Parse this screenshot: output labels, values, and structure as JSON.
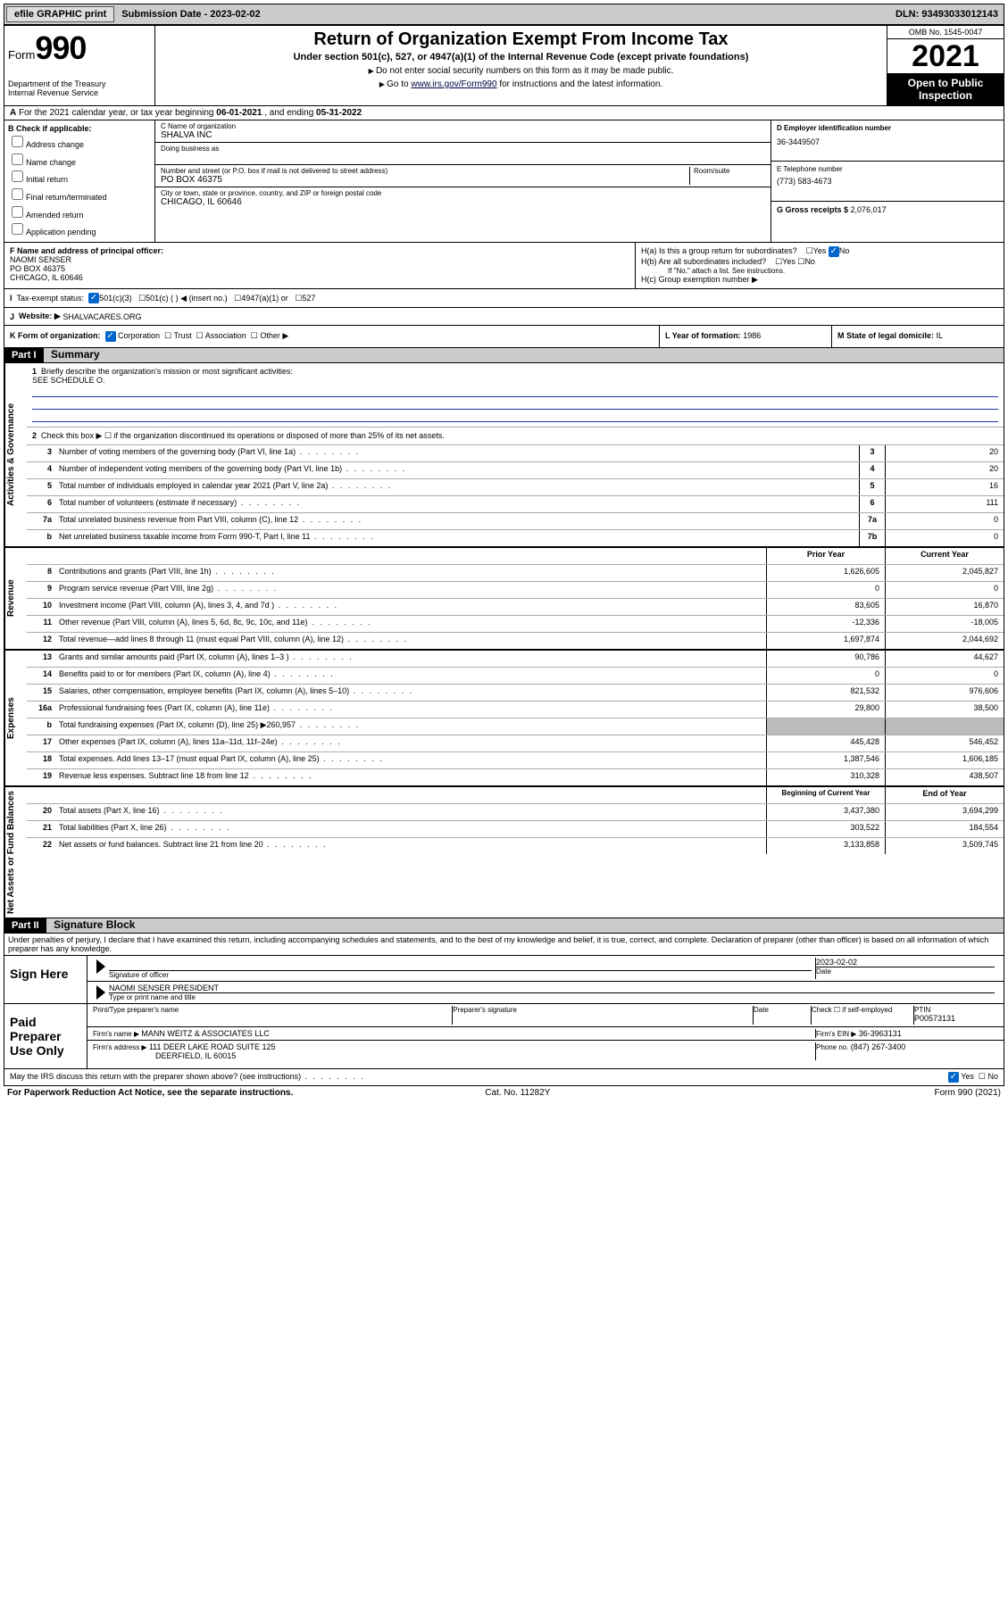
{
  "topbar": {
    "efile": "efile GRAPHIC print",
    "submission_label": "Submission Date - ",
    "submission_date": "2023-02-02",
    "dln_label": "DLN: ",
    "dln": "93493033012143"
  },
  "header": {
    "form_prefix": "Form",
    "form_num": "990",
    "dept": "Department of the Treasury\nInternal Revenue Service",
    "title": "Return of Organization Exempt From Income Tax",
    "sub1": "Under section 501(c), 527, or 4947(a)(1) of the Internal Revenue Code (except private foundations)",
    "sub2a": "Do not enter social security numbers on this form as it may be made public.",
    "sub2b_pre": "Go to ",
    "sub2b_link": "www.irs.gov/Form990",
    "sub2b_post": " for instructions and the latest information.",
    "omb": "OMB No. 1545-0047",
    "year": "2021",
    "open": "Open to Public Inspection"
  },
  "rowA": {
    "text_pre": "For the 2021 calendar year, or tax year beginning ",
    "begin": "06-01-2021",
    "mid": " , and ending ",
    "end": "05-31-2022"
  },
  "colB": {
    "label": "B Check if applicable:",
    "opts": [
      "Address change",
      "Name change",
      "Initial return",
      "Final return/terminated",
      "Amended return",
      "Application pending"
    ]
  },
  "colC": {
    "name_label": "C Name of organization",
    "name": "SHALVA INC",
    "dba_label": "Doing business as",
    "addr_label": "Number and street (or P.O. box if mail is not delivered to street address)",
    "room_label": "Room/suite",
    "addr": "PO BOX 46375",
    "city_label": "City or town, state or province, country, and ZIP or foreign postal code",
    "city": "CHICAGO, IL  60646"
  },
  "colD": {
    "ein_label": "D Employer identification number",
    "ein": "36-3449507",
    "phone_label": "E Telephone number",
    "phone": "(773) 583-4673",
    "gross_label": "G Gross receipts $ ",
    "gross": "2,076,017"
  },
  "rowF": {
    "label": "F Name and address of principal officer:",
    "name": "NAOMI SENSER",
    "addr1": "PO BOX 46375",
    "addr2": "CHICAGO, IL  60646"
  },
  "rowH": {
    "ha": "H(a)  Is this a group return for subordinates?",
    "hb": "H(b)  Are all subordinates included?",
    "hb_note": "If \"No,\" attach a list. See instructions.",
    "hc": "H(c)  Group exemption number ▶",
    "yes": "Yes",
    "no": "No"
  },
  "rowI": {
    "label": "Tax-exempt status:",
    "opts": [
      "501(c)(3)",
      "501(c) (  ) ◀ (insert no.)",
      "4947(a)(1) or",
      "527"
    ]
  },
  "rowJ": {
    "label": "Website: ▶ ",
    "val": "SHALVACARES.ORG"
  },
  "rowK": {
    "label": "K Form of organization:",
    "opts": [
      "Corporation",
      "Trust",
      "Association",
      "Other ▶"
    ]
  },
  "rowL": {
    "label": "L Year of formation: ",
    "val": "1986"
  },
  "rowM": {
    "label": "M State of legal domicile: ",
    "val": "IL"
  },
  "partI": {
    "hdr": "Part I",
    "title": "Summary",
    "q1_label": "Briefly describe the organization's mission or most significant activities:",
    "q1_val": "SEE SCHEDULE O.",
    "q2": "Check this box ▶ ☐  if the organization discontinued its operations or disposed of more than 25% of its net assets.",
    "lines_gov": [
      {
        "n": "3",
        "d": "Number of voting members of the governing body (Part VI, line 1a)",
        "box": "3",
        "v": "20"
      },
      {
        "n": "4",
        "d": "Number of independent voting members of the governing body (Part VI, line 1b)",
        "box": "4",
        "v": "20"
      },
      {
        "n": "5",
        "d": "Total number of individuals employed in calendar year 2021 (Part V, line 2a)",
        "box": "5",
        "v": "16"
      },
      {
        "n": "6",
        "d": "Total number of volunteers (estimate if necessary)",
        "box": "6",
        "v": "111"
      },
      {
        "n": "7a",
        "d": "Total unrelated business revenue from Part VIII, column (C), line 12",
        "box": "7a",
        "v": "0"
      },
      {
        "n": "b",
        "d": "Net unrelated business taxable income from Form 990-T, Part I, line 11",
        "box": "7b",
        "v": "0"
      }
    ],
    "col_prior": "Prior Year",
    "col_current": "Current Year",
    "lines_rev": [
      {
        "n": "8",
        "d": "Contributions and grants (Part VIII, line 1h)",
        "p": "1,626,605",
        "c": "2,045,827"
      },
      {
        "n": "9",
        "d": "Program service revenue (Part VIII, line 2g)",
        "p": "0",
        "c": "0"
      },
      {
        "n": "10",
        "d": "Investment income (Part VIII, column (A), lines 3, 4, and 7d )",
        "p": "83,605",
        "c": "16,870"
      },
      {
        "n": "11",
        "d": "Other revenue (Part VIII, column (A), lines 5, 6d, 8c, 9c, 10c, and 11e)",
        "p": "-12,336",
        "c": "-18,005"
      },
      {
        "n": "12",
        "d": "Total revenue—add lines 8 through 11 (must equal Part VIII, column (A), line 12)",
        "p": "1,697,874",
        "c": "2,044,692"
      }
    ],
    "lines_exp": [
      {
        "n": "13",
        "d": "Grants and similar amounts paid (Part IX, column (A), lines 1–3 )",
        "p": "90,786",
        "c": "44,627"
      },
      {
        "n": "14",
        "d": "Benefits paid to or for members (Part IX, column (A), line 4)",
        "p": "0",
        "c": "0"
      },
      {
        "n": "15",
        "d": "Salaries, other compensation, employee benefits (Part IX, column (A), lines 5–10)",
        "p": "821,532",
        "c": "976,606"
      },
      {
        "n": "16a",
        "d": "Professional fundraising fees (Part IX, column (A), line 11e)",
        "p": "29,800",
        "c": "38,500"
      },
      {
        "n": "b",
        "d": "Total fundraising expenses (Part IX, column (D), line 25) ▶260,957",
        "p": "",
        "c": "",
        "gray": true
      },
      {
        "n": "17",
        "d": "Other expenses (Part IX, column (A), lines 11a–11d, 11f–24e)",
        "p": "445,428",
        "c": "546,452"
      },
      {
        "n": "18",
        "d": "Total expenses. Add lines 13–17 (must equal Part IX, column (A), line 25)",
        "p": "1,387,546",
        "c": "1,606,185"
      },
      {
        "n": "19",
        "d": "Revenue less expenses. Subtract line 18 from line 12",
        "p": "310,328",
        "c": "438,507"
      }
    ],
    "col_begin": "Beginning of Current Year",
    "col_end": "End of Year",
    "lines_net": [
      {
        "n": "20",
        "d": "Total assets (Part X, line 16)",
        "p": "3,437,380",
        "c": "3,694,299"
      },
      {
        "n": "21",
        "d": "Total liabilities (Part X, line 26)",
        "p": "303,522",
        "c": "184,554"
      },
      {
        "n": "22",
        "d": "Net assets or fund balances. Subtract line 21 from line 20",
        "p": "3,133,858",
        "c": "3,509,745"
      }
    ],
    "tab_gov": "Activities & Governance",
    "tab_rev": "Revenue",
    "tab_exp": "Expenses",
    "tab_net": "Net Assets or Fund Balances"
  },
  "partII": {
    "hdr": "Part II",
    "title": "Signature Block",
    "declare": "Under penalties of perjury, I declare that I have examined this return, including accompanying schedules and statements, and to the best of my knowledge and belief, it is true, correct, and complete. Declaration of preparer (other than officer) is based on all information of which preparer has any knowledge.",
    "sign_here": "Sign Here",
    "sig_officer": "Signature of officer",
    "sig_date": "Date",
    "sig_date_val": "2023-02-02",
    "sig_name_label": "Type or print name and title",
    "sig_name": "NAOMI SENSER  PRESIDENT",
    "paid": "Paid Preparer Use Only",
    "prep_name_label": "Print/Type preparer's name",
    "prep_sig_label": "Preparer's signature",
    "prep_date_label": "Date",
    "prep_check": "Check ☐ if self-employed",
    "ptin_label": "PTIN",
    "ptin": "P00573131",
    "firm_name_label": "Firm's name    ▶ ",
    "firm_name": "MANN WEITZ & ASSOCIATES LLC",
    "firm_ein_label": "Firm's EIN ▶ ",
    "firm_ein": "36-3963131",
    "firm_addr_label": "Firm's address ▶ ",
    "firm_addr1": "111 DEER LAKE ROAD SUITE 125",
    "firm_addr2": "DEERFIELD, IL  60015",
    "firm_phone_label": "Phone no. ",
    "firm_phone": "(847) 267-3400",
    "discuss": "May the IRS discuss this return with the preparer shown above? (see instructions)",
    "discuss_yes": "Yes",
    "discuss_no": "No"
  },
  "footer": {
    "left": "For Paperwork Reduction Act Notice, see the separate instructions.",
    "mid": "Cat. No. 11282Y",
    "right": "Form 990 (2021)"
  }
}
